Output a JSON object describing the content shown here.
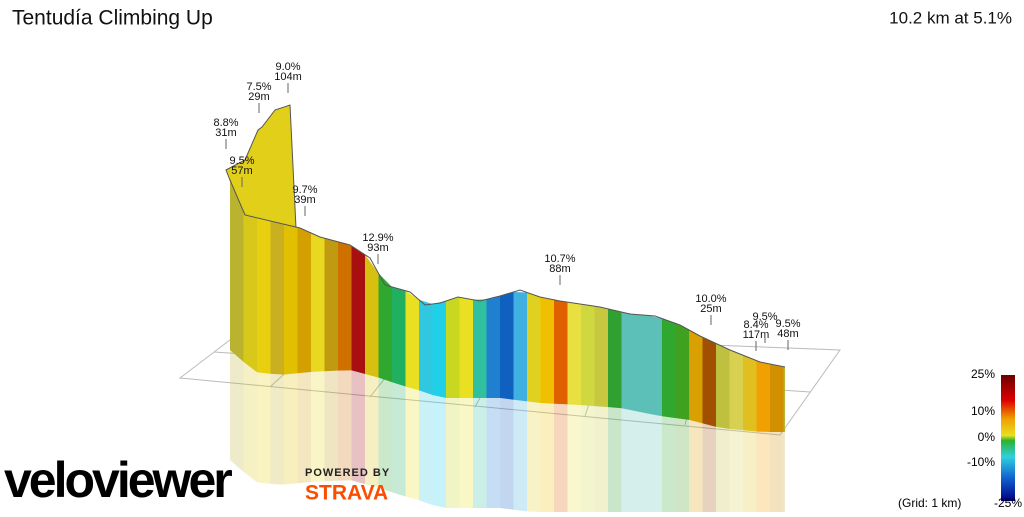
{
  "header": {
    "title": "Tentudía Climbing Up",
    "summary": "10.2 km at 5.1%"
  },
  "annotations": [
    {
      "grade": "9.0%",
      "distance": "104m"
    },
    {
      "grade": "7.5%",
      "distance": "29m"
    },
    {
      "grade": "8.8%",
      "distance": "31m"
    },
    {
      "grade": "9.5%",
      "distance": "57m"
    },
    {
      "grade": "9.7%",
      "distance": "39m"
    },
    {
      "grade": "12.9%",
      "distance": "93m"
    },
    {
      "grade": "10.7%",
      "distance": "88m"
    },
    {
      "grade": "10.0%",
      "distance": "25m"
    },
    {
      "grade": "8.4%",
      "distance": "117m"
    },
    {
      "grade": "9.5%"
    },
    {
      "grade": "9.5%",
      "distance": "48m"
    }
  ],
  "legend": {
    "labels": [
      "25%",
      "10%",
      "0%",
      "-10%",
      "-25%"
    ],
    "grid_note": "(Grid: 1 km)"
  },
  "branding": {
    "logo": "veloviewer",
    "powered_by": "POWERED BY",
    "partner": "STRAVA"
  }
}
